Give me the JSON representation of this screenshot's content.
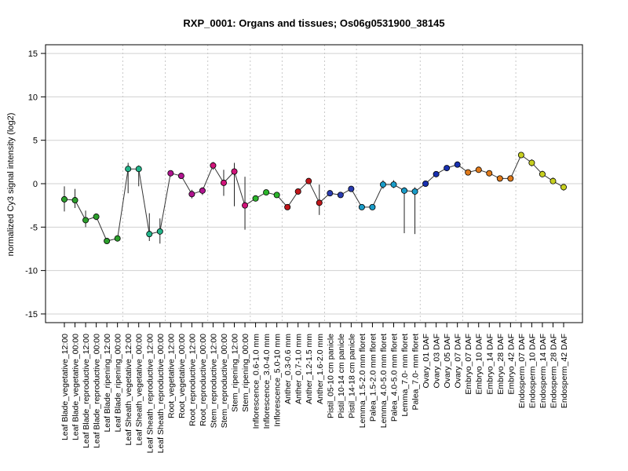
{
  "chart_data": {
    "type": "line",
    "title": "RXP_0001: Organs and tissues; Os06g0531900_38145",
    "xlabel": "",
    "ylabel": "normalized Cy3 signal intensity (log2)",
    "ylim": [
      -16,
      16
    ],
    "yticks": [
      -15,
      -10,
      -5,
      0,
      5,
      10,
      15
    ],
    "grid": true,
    "categories": [
      "Leaf Blade_vegetative_12:00",
      "Leaf Blade_vegetative_00:00",
      "Leaf Blade_reproductive_12:00",
      "Leaf Blade_reproductive_00:00",
      "Leaf Blade_ripening_12:00",
      "Leaf Blade_ripening_00:00",
      "Leaf Sheath_vegetative_12:00",
      "Leaf Sheath_vegetative_00:00",
      "Leaf Sheath_reproductive_12:00",
      "Leaf Sheath_reproductive_00:00",
      "Root_vegetative_12:00",
      "Root_vegetative_00:00",
      "Root_reproductive_12:00",
      "Root_reproductive_00:00",
      "Stem_reproductive_12:00",
      "Stem_reproductive_00:00",
      "Stem_ripening_12:00",
      "Stem_ripening_00:00",
      "Inflorescence_0.6-1.0 mm",
      "Inflorescence_3.0-4.0 mm",
      "Inflorescence_5.0-10 mm",
      "Anther_0.3-0.6 mm",
      "Anther_0.7-1.0 mm",
      "Anther_1.2-1.5 mm",
      "Anther_1.6-2.0 mm",
      "Pistil_05-10 cm panicle",
      "Pistil_10-14 cm panicle",
      "Pistil_14-18 cm panicle",
      "Lemma_1.5-2.0 mm floret",
      "Palea_1.5-2.0 mm floret",
      "Lemma_4.0-5.0 mm floret",
      "Palea_4.0-5.0 mm floret",
      "Lemma_7.0- mm floret",
      "Palea_7.0- mm floret",
      "Ovary_01 DAF",
      "Ovary_03 DAF",
      "Ovary_05 DAF",
      "Ovary_07 DAF",
      "Embryo_07 DAF",
      "Embryo_10 DAF",
      "Embryo_14 DAF",
      "Embryo_28 DAF",
      "Embryo_42 DAF",
      "Endosperm_07 DAF",
      "Endosperm_10 DAF",
      "Endosperm_14 DAF",
      "Endosperm_28 DAF",
      "Endosperm_42 DAF"
    ],
    "values": [
      -1.8,
      -1.9,
      -4.2,
      -3.8,
      -6.6,
      -6.3,
      1.7,
      1.7,
      -5.8,
      -5.5,
      1.2,
      0.9,
      -1.2,
      -0.8,
      2.1,
      0.1,
      1.4,
      -2.5,
      -1.7,
      -1.0,
      -1.3,
      -2.7,
      -0.9,
      0.3,
      -2.2,
      -1.1,
      -1.3,
      -0.6,
      -2.7,
      -2.7,
      -0.1,
      -0.1,
      -0.8,
      -0.9,
      0.0,
      1.1,
      1.8,
      2.2,
      1.3,
      1.6,
      1.2,
      0.6,
      0.6,
      3.3,
      2.4,
      1.1,
      0.3,
      -0.4
    ],
    "error_low": [
      -3.2,
      -2.8,
      -5.0,
      -4.2,
      -6.9,
      -6.6,
      -1.1,
      -0.3,
      -6.6,
      -6.9,
      1.0,
      0.7,
      -1.7,
      -1.3,
      1.6,
      -1.4,
      -2.6,
      -5.3,
      -1.9,
      -1.2,
      -1.6,
      -2.9,
      -1.2,
      0.1,
      -3.6,
      -1.3,
      -1.5,
      -0.8,
      -2.8,
      -2.8,
      -0.6,
      -0.5,
      -5.7,
      -5.8,
      -0.2,
      0.9,
      1.6,
      2.0,
      1.1,
      1.3,
      1.0,
      0.4,
      0.3,
      3.1,
      2.0,
      0.8,
      0.0,
      -0.8
    ],
    "error_high": [
      -0.3,
      -0.6,
      -3.1,
      -3.5,
      -6.3,
      -6.0,
      2.4,
      2.1,
      -3.4,
      -4.0,
      1.4,
      1.1,
      -0.7,
      -0.4,
      2.5,
      1.6,
      2.4,
      0.8,
      -1.5,
      -0.8,
      -1.0,
      -2.4,
      -0.7,
      0.6,
      -0.1,
      -0.9,
      -1.1,
      -0.3,
      -2.5,
      -2.4,
      0.4,
      0.4,
      -0.4,
      -0.4,
      0.2,
      1.3,
      2.0,
      2.4,
      1.5,
      1.9,
      1.4,
      0.8,
      0.8,
      3.5,
      2.8,
      1.5,
      0.7,
      -0.1
    ],
    "point_colors": [
      "#2ca02c",
      "#2ca02c",
      "#2ca02c",
      "#2ca02c",
      "#2ca02c",
      "#2ca02c",
      "#22b58a",
      "#22b58a",
      "#22b58a",
      "#22b58a",
      "#b0148f",
      "#b0148f",
      "#b0148f",
      "#b0148f",
      "#d1147a",
      "#d1147a",
      "#d1147a",
      "#d1147a",
      "#2bb52b",
      "#2bb52b",
      "#2bb52b",
      "#c0161a",
      "#c0161a",
      "#c0161a",
      "#c0161a",
      "#2a3cb0",
      "#2a3cb0",
      "#2a3cb0",
      "#1a9cc8",
      "#1a9cc8",
      "#1a9cc8",
      "#1a9cc8",
      "#1a9cc8",
      "#1a9cc8",
      "#1830b0",
      "#1830b0",
      "#1830b0",
      "#1830b0",
      "#e07a1a",
      "#e07a1a",
      "#e07a1a",
      "#e07a1a",
      "#e07a1a",
      "#c8d020",
      "#c8d020",
      "#c8d020",
      "#c8d020",
      "#c8d020"
    ],
    "group_separators_after": [
      5,
      9,
      13,
      17,
      20,
      24,
      27,
      33,
      37,
      42
    ]
  }
}
